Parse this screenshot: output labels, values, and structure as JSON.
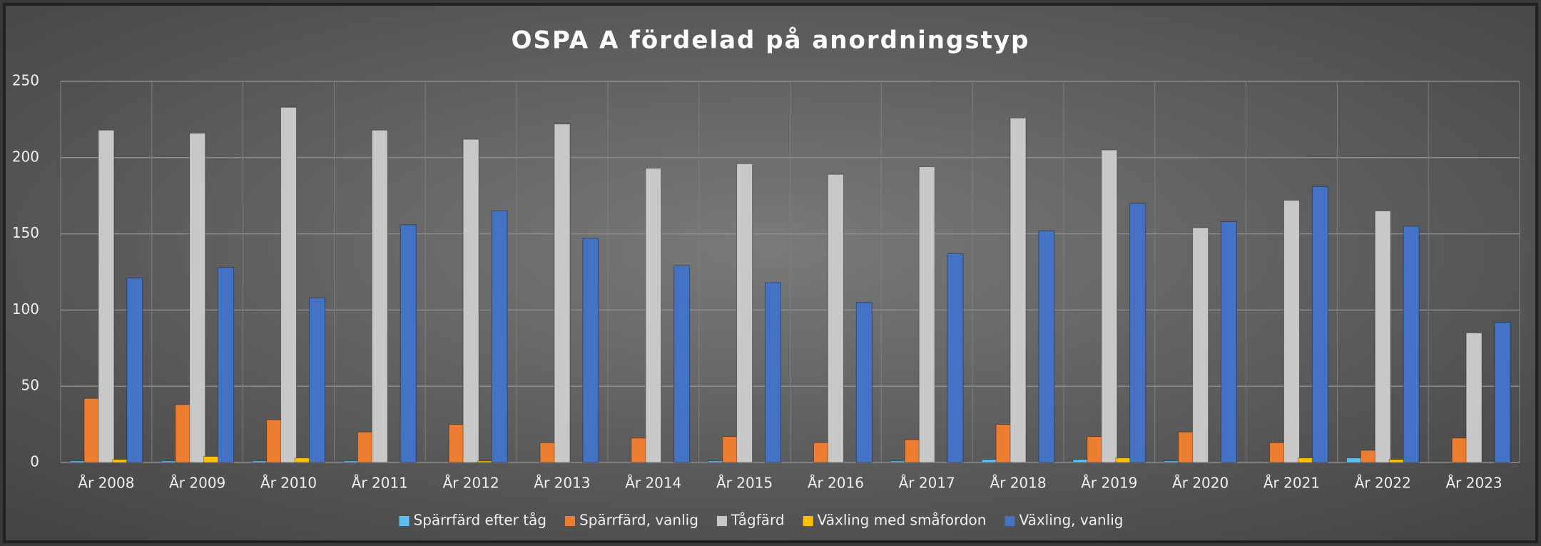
{
  "chart_data": {
    "type": "bar",
    "title": "OSPA A fördelad på anordningstyp",
    "categories": [
      "År 2008",
      "År 2009",
      "År 2010",
      "År 2011",
      "År 2012",
      "År 2013",
      "År 2014",
      "År 2015",
      "År 2016",
      "År 2017",
      "År 2018",
      "År 2019",
      "År 2020",
      "År 2021",
      "År 2022",
      "År 2023"
    ],
    "series": [
      {
        "name": "Spärrfärd efter tåg",
        "color": "#5bc0f0",
        "values": [
          1,
          1,
          1,
          1,
          0,
          0,
          0,
          1,
          0,
          1,
          2,
          2,
          1,
          0,
          3,
          0
        ]
      },
      {
        "name": "Spärrfärd, vanlig",
        "color": "#ed7d31",
        "values": [
          42,
          38,
          28,
          20,
          25,
          13,
          16,
          17,
          13,
          15,
          25,
          17,
          20,
          13,
          8,
          16
        ]
      },
      {
        "name": "Tågfärd",
        "color": "#c8c8c8",
        "values": [
          218,
          216,
          233,
          218,
          212,
          222,
          193,
          196,
          189,
          194,
          226,
          205,
          154,
          172,
          165,
          85
        ]
      },
      {
        "name": "Växling med småfordon",
        "color": "#ffc000",
        "values": [
          2,
          4,
          3,
          0,
          1,
          0,
          0,
          0,
          0,
          0,
          0,
          3,
          0,
          3,
          2,
          0
        ]
      },
      {
        "name": "Växling, vanlig",
        "color": "#4472c4",
        "values": [
          121,
          128,
          108,
          156,
          165,
          147,
          129,
          118,
          105,
          137,
          152,
          170,
          158,
          181,
          155,
          92
        ]
      }
    ],
    "ylim": [
      0,
      250
    ],
    "yticks": [
      0,
      50,
      100,
      150,
      200,
      250
    ],
    "grid": true,
    "legend": "bottom"
  }
}
